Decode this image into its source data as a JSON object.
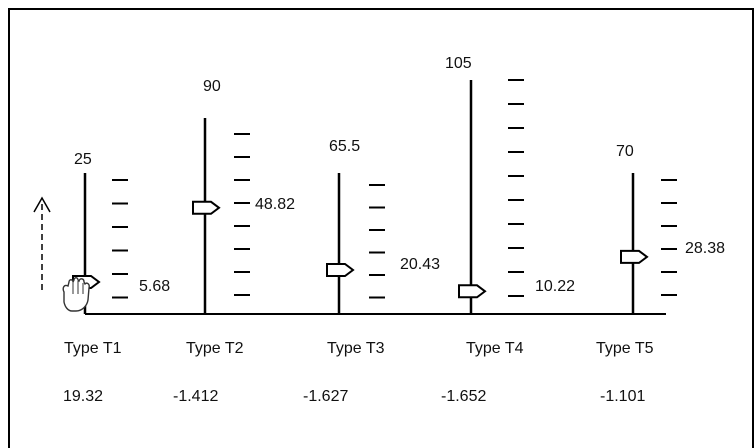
{
  "gauges": [
    {
      "max": "25",
      "value": "5.68",
      "type": "Type T1",
      "score": "19.32",
      "level": 0.227
    },
    {
      "max": "90",
      "value": "48.82",
      "type": "Type T2",
      "score": "-1.412",
      "level": 0.542
    },
    {
      "max": "65.5",
      "value": "20.43",
      "type": "Type T3",
      "score": "-1.627",
      "level": 0.312
    },
    {
      "max": "105",
      "value": "10.22",
      "type": "Type T4",
      "score": "-1.652",
      "level": 0.097
    },
    {
      "max": "70",
      "value": "28.38",
      "type": "Type T5",
      "score": "-1.101",
      "level": 0.405
    }
  ],
  "icons": {
    "cursor": "hand-grab-icon",
    "direction": "dashed-up-arrow-icon",
    "marker": "pointer-marker-icon"
  }
}
